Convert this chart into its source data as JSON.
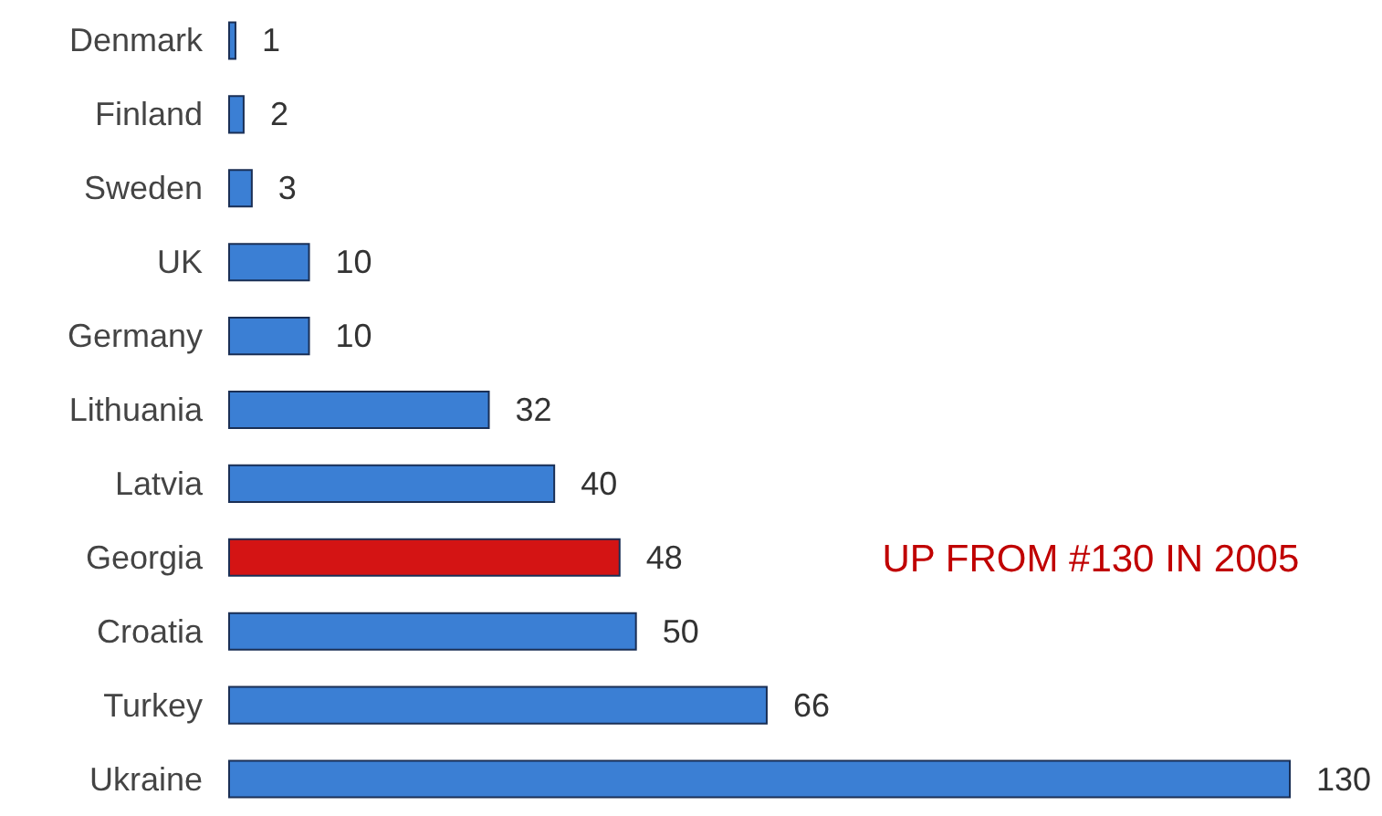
{
  "chart_data": {
    "type": "bar",
    "orientation": "horizontal",
    "categories": [
      "Denmark",
      "Finland",
      "Sweden",
      "UK",
      "Germany",
      "Lithuania",
      "Latvia",
      "Georgia",
      "Croatia",
      "Turkey",
      "Ukraine"
    ],
    "values": [
      1,
      2,
      3,
      10,
      10,
      32,
      40,
      48,
      50,
      66,
      130
    ],
    "colors": [
      "#3b7fd4",
      "#3b7fd4",
      "#3b7fd4",
      "#3b7fd4",
      "#3b7fd4",
      "#3b7fd4",
      "#3b7fd4",
      "#d41414",
      "#3b7fd4",
      "#3b7fd4",
      "#3b7fd4"
    ],
    "data_labels": true,
    "annotations": [
      "UP FROM #130 IN 2005"
    ]
  }
}
